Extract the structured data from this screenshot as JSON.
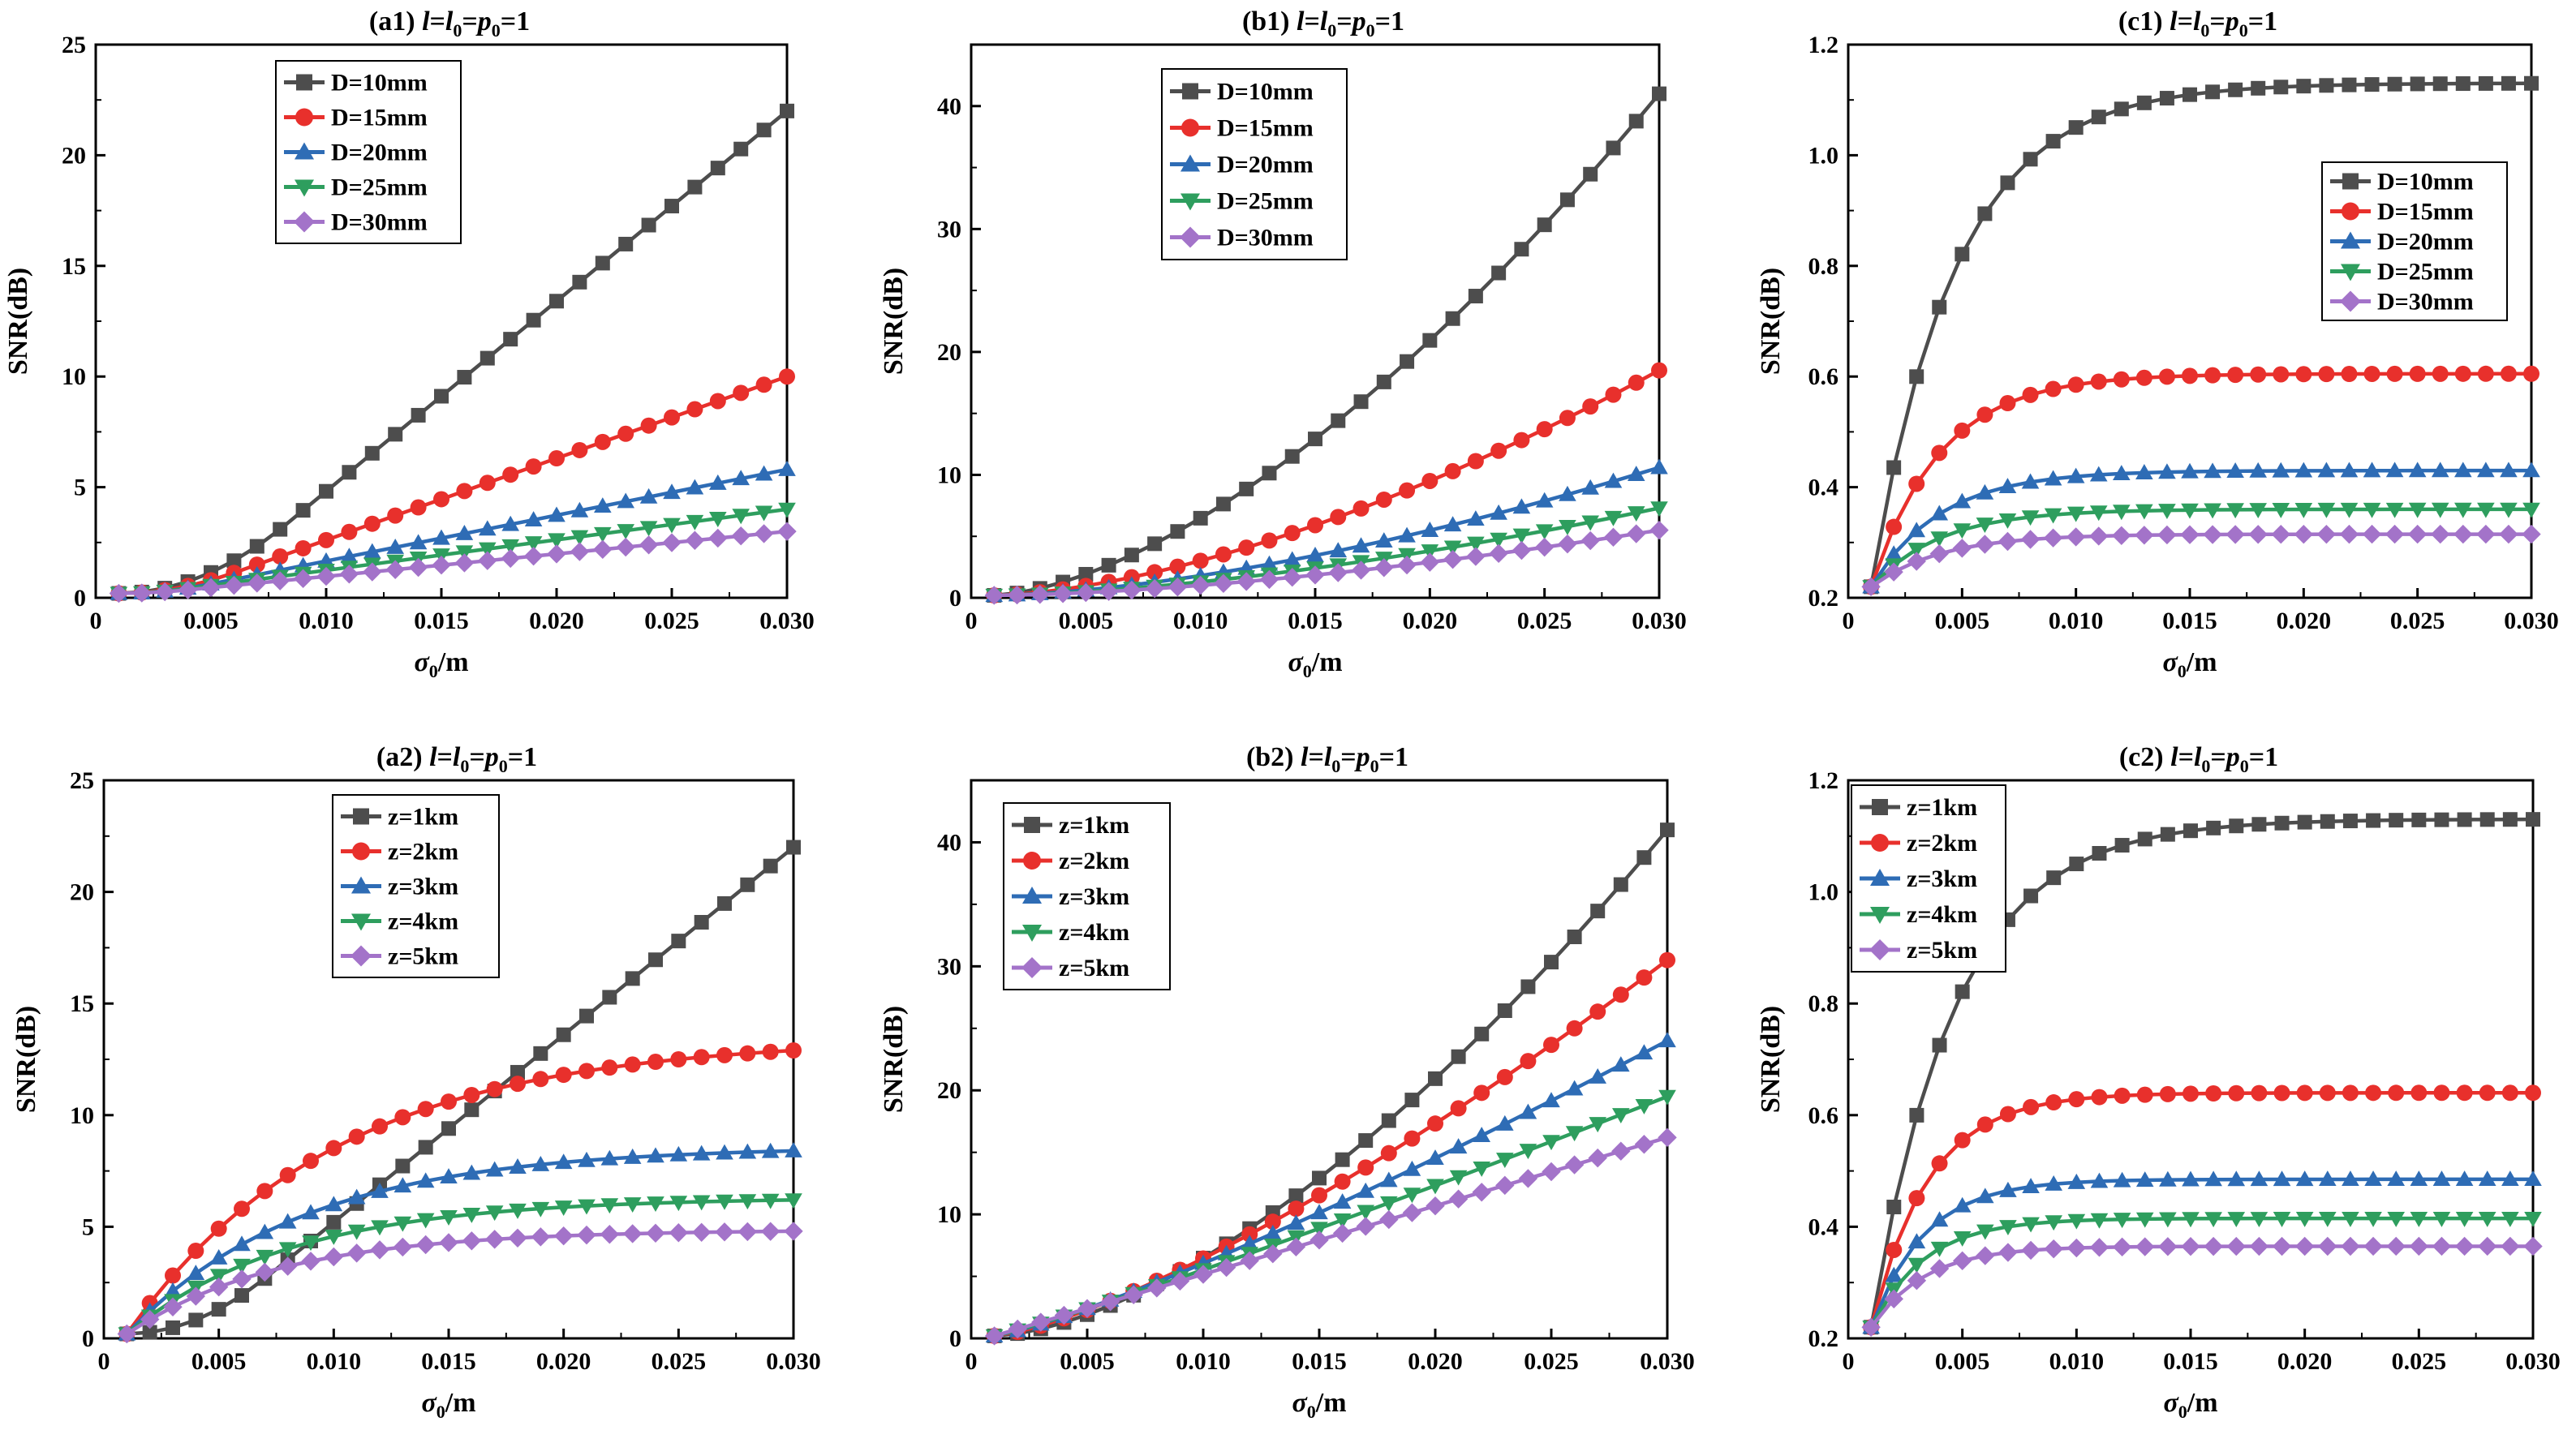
{
  "colors": {
    "gray": "#4d4d4d",
    "red": "#e8302c",
    "blue": "#2e6cb5",
    "green": "#2e9e5e",
    "purple": "#a373c9"
  },
  "chart_data": [
    {
      "id": "a1",
      "type": "line",
      "title": {
        "tag": "(a1)",
        "prefix": "l",
        "eq1": "=",
        "mid": "l",
        "sub1": "0",
        "eq2": "=",
        "p": "p",
        "sub2": "0",
        "tail": "=1"
      },
      "xlabel": {
        "sym": "σ",
        "sub": "0",
        "unit": "/m"
      },
      "ylabel": "SNR(dB)",
      "xlim": [
        0,
        0.03
      ],
      "ylim": [
        0,
        25
      ],
      "xticks": [
        "0",
        "0.005",
        "0.010",
        "0.015",
        "0.020",
        "0.025",
        "0.030"
      ],
      "yticks": [
        "0",
        "5",
        "10",
        "15",
        "20",
        "25"
      ],
      "legend_position": "top-left",
      "legend_labels": [
        "D=10mm",
        "D=15mm",
        "D=20mm",
        "D=25mm",
        "D=30mm"
      ],
      "series": [
        {
          "name": "D=10mm",
          "kind": "lin",
          "x0": 0.008,
          "a": 0.2,
          "b": 22
        },
        {
          "name": "D=15mm",
          "kind": "lin",
          "x0": 0.006,
          "a": 0.2,
          "b": 10
        },
        {
          "name": "D=20mm",
          "kind": "lin",
          "x0": 0.005,
          "a": 0.2,
          "b": 5.8
        },
        {
          "name": "D=25mm",
          "kind": "lin",
          "x0": 0.004,
          "a": 0.2,
          "b": 4.0
        },
        {
          "name": "D=30mm",
          "kind": "lin",
          "x0": 0.004,
          "a": 0.2,
          "b": 3.0
        }
      ]
    },
    {
      "id": "b1",
      "type": "line",
      "title": {
        "tag": "(b1)",
        "prefix": "l",
        "eq1": "=",
        "mid": "l",
        "sub1": "0",
        "eq2": "=",
        "p": "p",
        "sub2": "0",
        "tail": "=1"
      },
      "xlabel": {
        "sym": "σ",
        "sub": "0",
        "unit": "/m"
      },
      "ylabel": "SNR(dB)",
      "xlim": [
        0,
        0.03
      ],
      "ylim": [
        0,
        45
      ],
      "xticks": [
        "0",
        "0.005",
        "0.010",
        "0.015",
        "0.020",
        "0.025",
        "0.030"
      ],
      "yticks": [
        "0",
        "10",
        "20",
        "30",
        "40"
      ],
      "legend_position": "top-center",
      "legend_labels": [
        "D=10mm",
        "D=15mm",
        "D=20mm",
        "D=25mm",
        "D=30mm"
      ],
      "series": [
        {
          "name": "D=10mm",
          "kind": "pow",
          "p": 1.6,
          "a": 0.2,
          "b": 41
        },
        {
          "name": "D=15mm",
          "kind": "pow",
          "p": 1.6,
          "a": 0.2,
          "b": 18.5
        },
        {
          "name": "D=20mm",
          "kind": "pow",
          "p": 1.6,
          "a": 0.2,
          "b": 10.6
        },
        {
          "name": "D=25mm",
          "kind": "pow",
          "p": 1.6,
          "a": 0.2,
          "b": 7.3
        },
        {
          "name": "D=30mm",
          "kind": "pow",
          "p": 1.6,
          "a": 0.2,
          "b": 5.5
        }
      ]
    },
    {
      "id": "c1",
      "type": "line",
      "title": {
        "tag": "(c1)",
        "prefix": "l",
        "eq1": "=",
        "mid": "l",
        "sub1": "0",
        "eq2": "=",
        "p": "p",
        "sub2": "0",
        "tail": "=1"
      },
      "xlabel": {
        "sym": "σ",
        "sub": "0",
        "unit": "/m"
      },
      "ylabel": "SNR(dB)",
      "xlim": [
        0,
        0.03
      ],
      "ylim": [
        0.2,
        1.2
      ],
      "xticks": [
        "0",
        "0.005",
        "0.010",
        "0.015",
        "0.020",
        "0.025",
        "0.030"
      ],
      "yticks": [
        "0.2",
        "0.4",
        "0.6",
        "0.8",
        "1.0",
        "1.2"
      ],
      "legend_position": "right",
      "legend_labels": [
        "D=10mm",
        "D=15mm",
        "D=20mm",
        "D=25mm",
        "D=30mm"
      ],
      "series": [
        {
          "name": "D=10mm",
          "kind": "sat",
          "k": 270,
          "a": 0.22,
          "b": 1.13
        },
        {
          "name": "D=15mm",
          "kind": "sat",
          "k": 330,
          "a": 0.22,
          "b": 0.605
        },
        {
          "name": "D=20mm",
          "kind": "sat",
          "k": 330,
          "a": 0.22,
          "b": 0.43
        },
        {
          "name": "D=25mm",
          "kind": "sat",
          "k": 330,
          "a": 0.22,
          "b": 0.36
        },
        {
          "name": "D=30mm",
          "kind": "sat",
          "k": 330,
          "a": 0.22,
          "b": 0.315
        }
      ]
    },
    {
      "id": "a2",
      "type": "line",
      "title": {
        "tag": "(a2)",
        "prefix": "l",
        "eq1": "=",
        "mid": "l",
        "sub1": "0",
        "eq2": "=",
        "p": "p",
        "sub2": "0",
        "tail": "=1"
      },
      "xlabel": {
        "sym": "σ",
        "sub": "0",
        "unit": "/m"
      },
      "ylabel": "SNR(dB)",
      "xlim": [
        0,
        0.03
      ],
      "ylim": [
        0,
        25
      ],
      "xticks": [
        "0",
        "0.005",
        "0.010",
        "0.015",
        "0.020",
        "0.025",
        "0.030"
      ],
      "yticks": [
        "0",
        "5",
        "10",
        "15",
        "20",
        "25"
      ],
      "legend_position": "top-center",
      "legend_labels": [
        "z=1km",
        "z=2km",
        "z=3km",
        "z=4km",
        "z=5km"
      ],
      "series": [
        {
          "name": "z=1km",
          "kind": "lin",
          "x0": 0.007,
          "a": 0.2,
          "b": 22
        },
        {
          "name": "z=2km",
          "kind": "sat",
          "k": 110,
          "a": 0.2,
          "b": 12.9
        },
        {
          "name": "z=3km",
          "kind": "sat",
          "k": 130,
          "a": 0.2,
          "b": 8.4
        },
        {
          "name": "z=4km",
          "kind": "sat",
          "k": 140,
          "a": 0.2,
          "b": 6.2
        },
        {
          "name": "z=5km",
          "kind": "sat",
          "k": 150,
          "a": 0.2,
          "b": 4.8
        }
      ]
    },
    {
      "id": "b2",
      "type": "line",
      "title": {
        "tag": "(b2)",
        "prefix": "l",
        "eq1": "=",
        "mid": "l",
        "sub1": "0",
        "eq2": "=",
        "p": "p",
        "sub2": "0",
        "tail": "=1"
      },
      "xlabel": {
        "sym": "σ",
        "sub": "0",
        "unit": "/m"
      },
      "ylabel": "SNR(dB)",
      "xlim": [
        0,
        0.03
      ],
      "ylim": [
        0,
        45
      ],
      "xticks": [
        "0",
        "0.005",
        "0.010",
        "0.015",
        "0.020",
        "0.025",
        "0.030"
      ],
      "yticks": [
        "0",
        "10",
        "20",
        "30",
        "40"
      ],
      "legend_position": "top-left",
      "legend_labels": [
        "z=1km",
        "z=2km",
        "z=3km",
        "z=4km",
        "z=5km"
      ],
      "series": [
        {
          "name": "z=1km",
          "kind": "pow",
          "p": 1.6,
          "a": 0.2,
          "b": 41
        },
        {
          "name": "z=2km",
          "kind": "pow",
          "p": 1.35,
          "a": 0.2,
          "b": 30.5
        },
        {
          "name": "z=3km",
          "kind": "pow",
          "p": 1.2,
          "a": 0.2,
          "b": 24
        },
        {
          "name": "z=4km",
          "kind": "pow",
          "p": 1.1,
          "a": 0.2,
          "b": 19.5
        },
        {
          "name": "z=5km",
          "kind": "pow",
          "p": 1.0,
          "a": 0.2,
          "b": 16.2
        }
      ]
    },
    {
      "id": "c2",
      "type": "line",
      "title": {
        "tag": "(c2)",
        "prefix": "l",
        "eq1": "=",
        "mid": "l",
        "sub1": "0",
        "eq2": "=",
        "p": "p",
        "sub2": "0",
        "tail": "=1"
      },
      "xlabel": {
        "sym": "σ",
        "sub": "0",
        "unit": "/m"
      },
      "ylabel": "SNR(dB)",
      "xlim": [
        0,
        0.03
      ],
      "ylim": [
        0.2,
        1.2
      ],
      "xticks": [
        "0",
        "0.005",
        "0.010",
        "0.015",
        "0.020",
        "0.025",
        "0.030"
      ],
      "yticks": [
        "0.2",
        "0.4",
        "0.6",
        "0.8",
        "1.0",
        "1.2"
      ],
      "legend_position": "top-left",
      "legend_labels": [
        "z=1km",
        "z=2km",
        "z=3km",
        "z=4km",
        "z=5km"
      ],
      "series": [
        {
          "name": "z=1km",
          "kind": "sat",
          "k": 270,
          "a": 0.22,
          "b": 1.13
        },
        {
          "name": "z=2km",
          "kind": "sat",
          "k": 400,
          "a": 0.22,
          "b": 0.64
        },
        {
          "name": "z=3km",
          "kind": "sat",
          "k": 430,
          "a": 0.22,
          "b": 0.485
        },
        {
          "name": "z=4km",
          "kind": "sat",
          "k": 430,
          "a": 0.22,
          "b": 0.415
        },
        {
          "name": "z=5km",
          "kind": "sat",
          "k": 430,
          "a": 0.22,
          "b": 0.365
        }
      ]
    }
  ]
}
